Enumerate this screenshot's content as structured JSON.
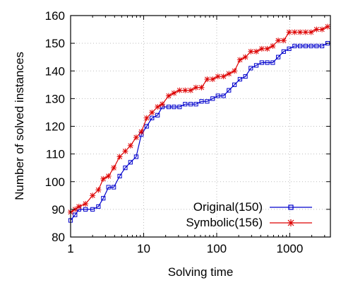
{
  "chart_data": {
    "type": "line",
    "title": "",
    "xlabel": "Solving time",
    "ylabel": "Number of solved instances",
    "xscale": "log",
    "xlim": [
      1,
      3600
    ],
    "ylim": [
      80,
      160
    ],
    "x_ticks": [
      1,
      10,
      100,
      1000
    ],
    "x_tick_labels": [
      "1",
      "10",
      "100",
      "1000"
    ],
    "y_ticks": [
      80,
      90,
      100,
      110,
      120,
      130,
      140,
      150,
      160
    ],
    "y_tick_labels": [
      "80",
      "90",
      "100",
      "110",
      "120",
      "130",
      "140",
      "150",
      "160"
    ],
    "grid": true,
    "legend_position": "bottom-right",
    "series": [
      {
        "name": "Original(150)",
        "color": "#0000cc",
        "marker": "square",
        "x": [
          1,
          1.15,
          1.3,
          1.6,
          2.0,
          2.4,
          2.8,
          3.3,
          3.9,
          4.7,
          5.6,
          6.6,
          7.9,
          9.3,
          11,
          13,
          15.5,
          18,
          22,
          26,
          31,
          37,
          44,
          52,
          62,
          74,
          88,
          104,
          124,
          147,
          175,
          208,
          247,
          293,
          348,
          414,
          492,
          585,
          695,
          826,
          981,
          1166,
          1386,
          1647,
          1957,
          2326,
          2764,
          3300
        ],
        "y": [
          86,
          88,
          90,
          90,
          90,
          91,
          94,
          98,
          98,
          102,
          105,
          107,
          109,
          117,
          120,
          123,
          124,
          127,
          127,
          127,
          127,
          128,
          128,
          128,
          129,
          129,
          130,
          131,
          131,
          133,
          135,
          137,
          138,
          141,
          142,
          143,
          143,
          143,
          145,
          147,
          148,
          149,
          149,
          149,
          149,
          149,
          149,
          150
        ]
      },
      {
        "name": "Symbolic(156)",
        "color": "#dd0000",
        "marker": "star",
        "x": [
          1,
          1.15,
          1.3,
          1.6,
          2.0,
          2.4,
          2.8,
          3.3,
          3.9,
          4.7,
          5.6,
          6.6,
          7.9,
          9.3,
          11,
          13,
          15.5,
          18,
          22,
          26,
          31,
          37,
          44,
          52,
          62,
          74,
          88,
          104,
          124,
          147,
          175,
          208,
          247,
          293,
          348,
          414,
          492,
          585,
          695,
          826,
          981,
          1166,
          1386,
          1647,
          1957,
          2326,
          2764,
          3300
        ],
        "y": [
          89,
          90,
          91,
          92,
          95,
          97,
          101,
          102,
          105,
          109,
          111,
          113,
          116,
          118,
          123,
          125,
          127,
          128,
          131,
          132,
          133,
          133,
          133,
          134,
          134,
          137,
          137,
          138,
          138,
          139,
          140,
          144,
          145,
          147,
          147,
          148,
          148,
          149,
          151,
          151,
          154,
          154,
          154,
          154,
          154,
          155,
          155,
          156
        ]
      }
    ]
  }
}
